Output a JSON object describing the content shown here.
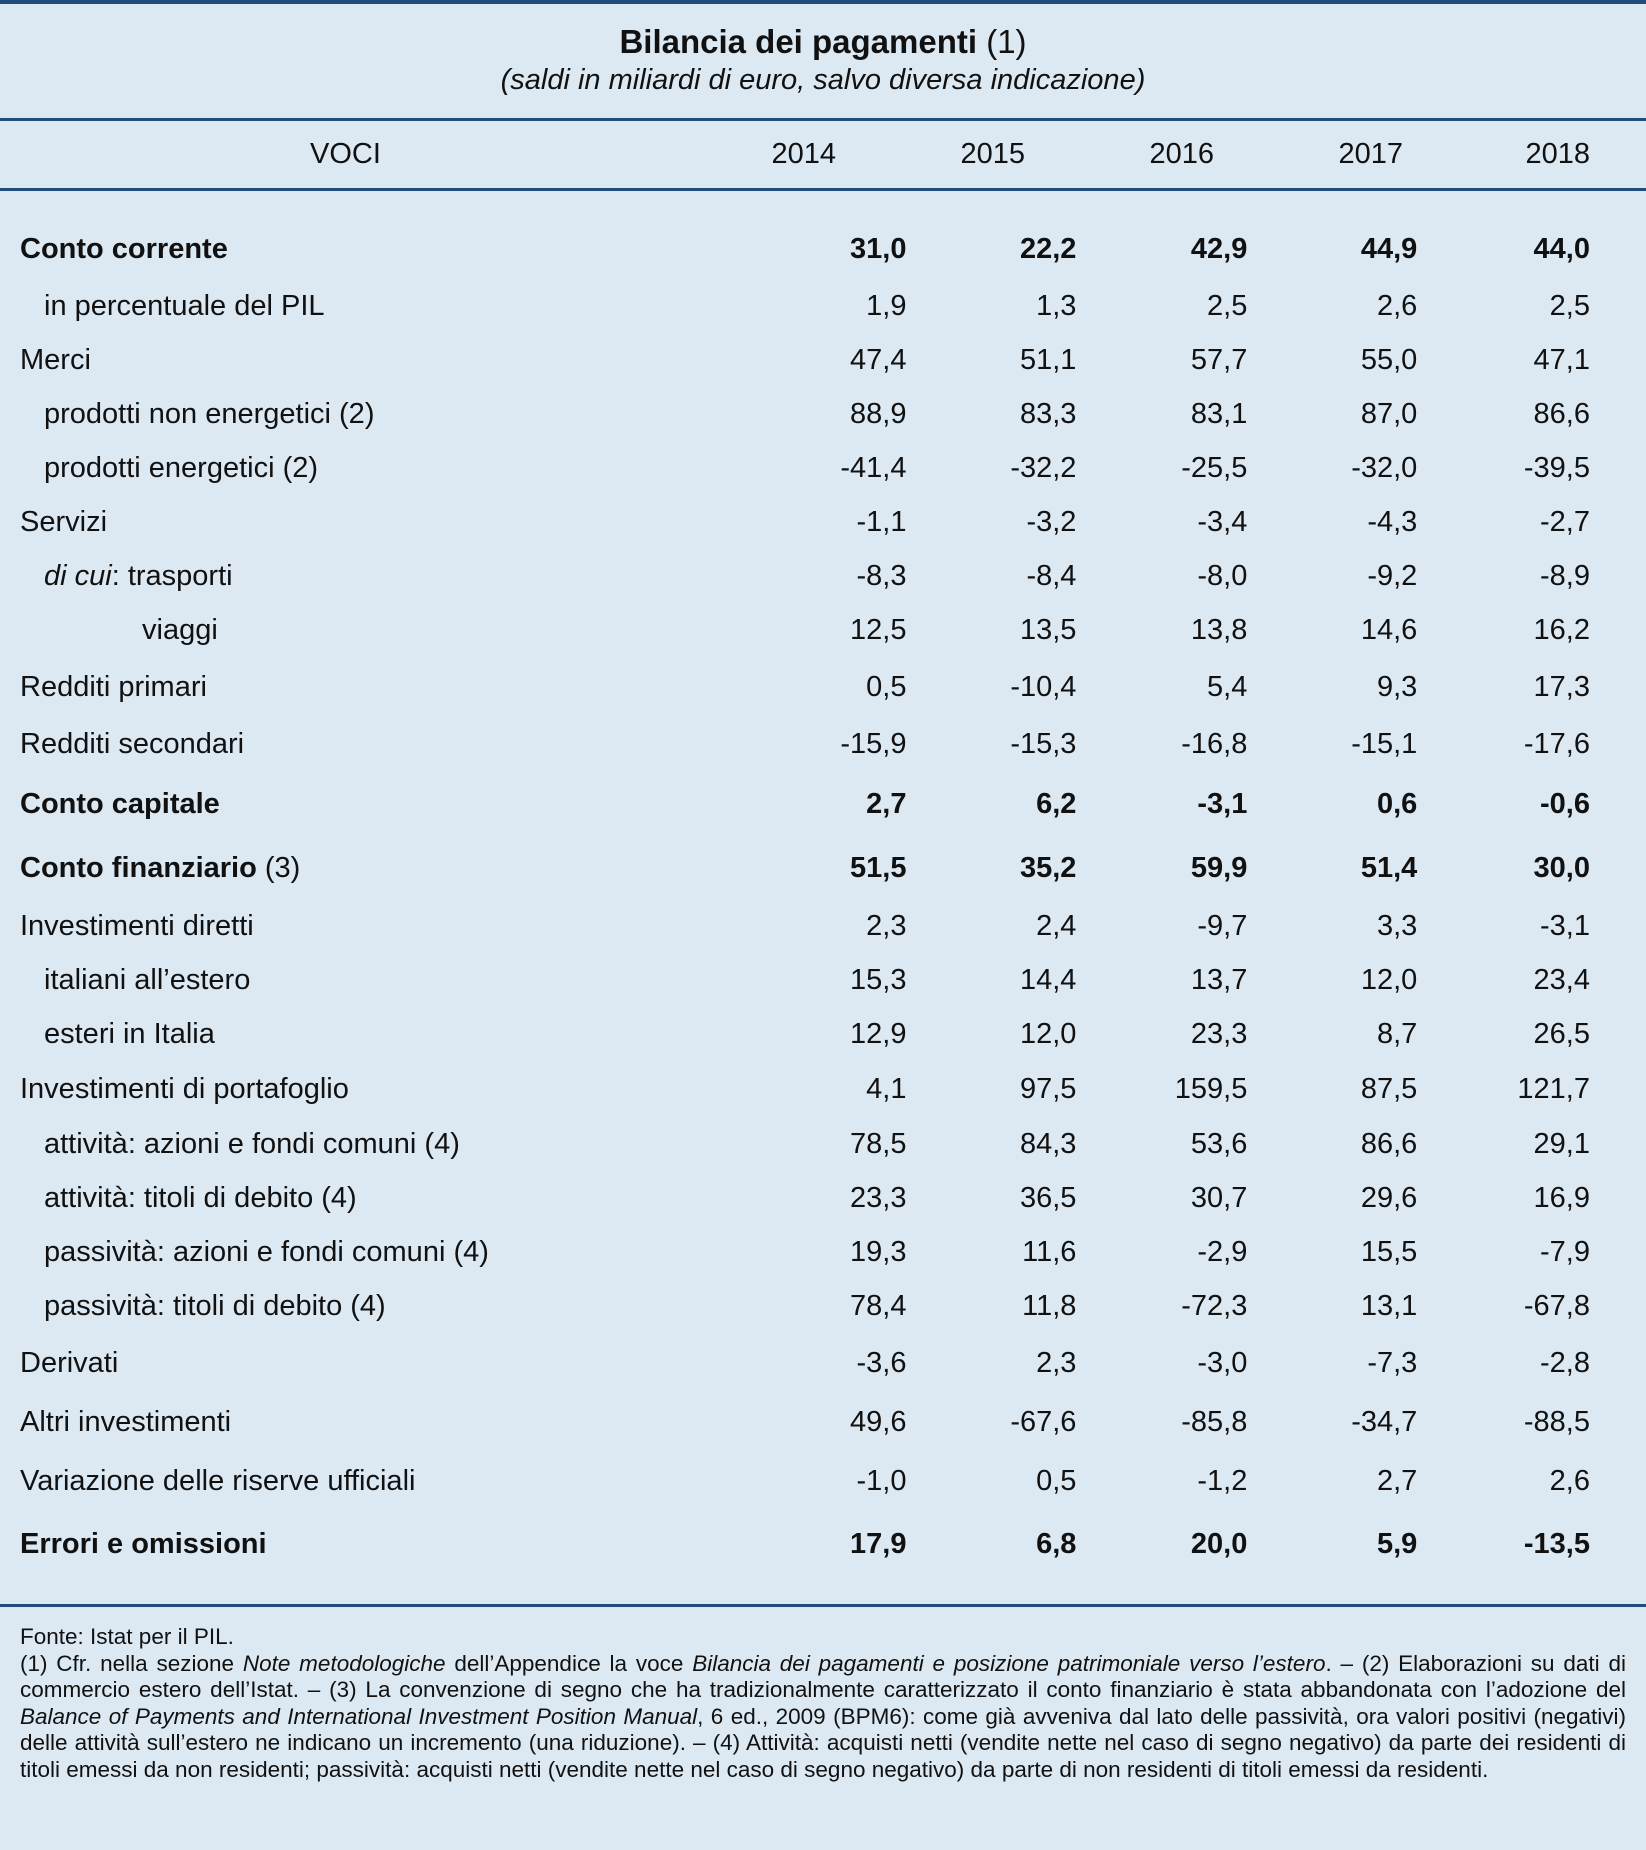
{
  "title": {
    "main": "Bilancia dei pagamenti",
    "ref": "(1)",
    "subtitle": "(saldi in miliardi di euro, salvo diversa indicazione)"
  },
  "header": {
    "voci": "VOCI",
    "years": [
      "2014",
      "2015",
      "2016",
      "2017",
      "2018"
    ]
  },
  "rows": [
    {
      "label": "Conto corrente",
      "suffix": "",
      "values": [
        "31,0",
        "22,2",
        "42,9",
        "44,9",
        "44,0"
      ]
    },
    {
      "label": "in percentuale del PIL",
      "values": [
        "1,9",
        "1,3",
        "2,5",
        "2,6",
        "2,5"
      ]
    },
    {
      "label": "Merci",
      "values": [
        "47,4",
        "51,1",
        "57,7",
        "55,0",
        "47,1"
      ]
    },
    {
      "label": "prodotti non energetici (2)",
      "values": [
        "88,9",
        "83,3",
        "83,1",
        "87,0",
        "86,6"
      ]
    },
    {
      "label": "prodotti energetici (2)",
      "values": [
        "-41,4",
        "-32,2",
        "-25,5",
        "-32,0",
        "-39,5"
      ]
    },
    {
      "label": "Servizi",
      "values": [
        "-1,1",
        "-3,2",
        "-3,4",
        "-4,3",
        "-2,7"
      ]
    },
    {
      "label_italic": "di cui",
      "label_rest": ": trasporti",
      "values": [
        "-8,3",
        "-8,4",
        "-8,0",
        "-9,2",
        "-8,9"
      ]
    },
    {
      "label": "viaggi",
      "values": [
        "12,5",
        "13,5",
        "13,8",
        "14,6",
        "16,2"
      ]
    },
    {
      "label": "Redditi primari",
      "values": [
        "0,5",
        "-10,4",
        "5,4",
        "9,3",
        "17,3"
      ]
    },
    {
      "label": "Redditi secondari",
      "values": [
        "-15,9",
        "-15,3",
        "-16,8",
        "-15,1",
        "-17,6"
      ]
    },
    {
      "label": "Conto capitale",
      "values": [
        "2,7",
        "6,2",
        "-3,1",
        "0,6",
        "-0,6"
      ]
    },
    {
      "label": "Conto finanziario",
      "suffix": " (3)",
      "values": [
        "51,5",
        "35,2",
        "59,9",
        "51,4",
        "30,0"
      ]
    },
    {
      "label": "Investimenti diretti",
      "values": [
        "2,3",
        "2,4",
        "-9,7",
        "3,3",
        "-3,1"
      ]
    },
    {
      "label": "italiani all’estero",
      "values": [
        "15,3",
        "14,4",
        "13,7",
        "12,0",
        "23,4"
      ]
    },
    {
      "label": "esteri in Italia",
      "values": [
        "12,9",
        "12,0",
        "23,3",
        "8,7",
        "26,5"
      ]
    },
    {
      "label": "Investimenti di portafoglio",
      "values": [
        "4,1",
        "97,5",
        "159,5",
        "87,5",
        "121,7"
      ]
    },
    {
      "label": "attività: azioni e fondi comuni (4)",
      "values": [
        "78,5",
        "84,3",
        "53,6",
        "86,6",
        "29,1"
      ]
    },
    {
      "label": "attività: titoli di debito (4)",
      "values": [
        "23,3",
        "36,5",
        "30,7",
        "29,6",
        "16,9"
      ]
    },
    {
      "label": "passività: azioni e fondi comuni (4)",
      "values": [
        "19,3",
        "11,6",
        "-2,9",
        "15,5",
        "-7,9"
      ]
    },
    {
      "label": "passività: titoli di debito (4)",
      "values": [
        "78,4",
        "11,8",
        "-72,3",
        "13,1",
        "-67,8"
      ]
    },
    {
      "label": "Derivati",
      "values": [
        "-3,6",
        "2,3",
        "-3,0",
        "-7,3",
        "-2,8"
      ]
    },
    {
      "label": "Altri investimenti",
      "values": [
        "49,6",
        "-67,6",
        "-85,8",
        "-34,7",
        "-88,5"
      ]
    },
    {
      "label": "Variazione delle riserve ufficiali",
      "values": [
        "-1,0",
        "0,5",
        "-1,2",
        "2,7",
        "2,6"
      ]
    },
    {
      "label": "Errori e omissioni",
      "values": [
        "17,9",
        "6,8",
        "20,0",
        "5,9",
        "-13,5"
      ]
    }
  ],
  "notes": {
    "source": "Fonte: Istat per il PIL.",
    "n1_a": "(1) Cfr. nella sezione ",
    "n1_i1": "Note metodologiche",
    "n1_b": " dell’Appendice la voce ",
    "n1_i2": "Bilancia dei pagamenti e posizione patrimoniale verso l’estero",
    "n1_c": ". – (2) Elaborazioni su dati di commercio estero dell’Istat. – (3) La convenzione di segno che ha tradizionalmente caratterizzato il conto finanziario è stata abbandonata con l’adozione del ",
    "n1_i3": "Balance of Payments and International Investment Position Manual",
    "n1_d": ", 6 ed., 2009 (BPM6): come già avveniva dal lato delle passività, ora valori positivi (negativi) delle attività sull’estero ne indicano un incremento (una riduzione). – (4) Attività: acquisti netti (vendite nette nel caso di segno negativo) da parte dei residenti di titoli emessi da non residenti; passività: acquisti netti (vendite nette nel caso di segno negativo) da parte di non residenti di titoli emessi da residenti."
  }
}
